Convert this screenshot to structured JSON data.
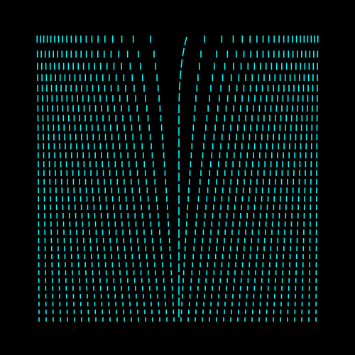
{
  "canvas": {
    "background_color": "#000000",
    "stroke_color": "#00FFFF"
  },
  "pattern": {
    "description": "",
    "curve_count": 40,
    "dashes_per_curve": 32,
    "style": "vertical dashed cyan streaks fanning out from center, converging toward the bottom"
  }
}
